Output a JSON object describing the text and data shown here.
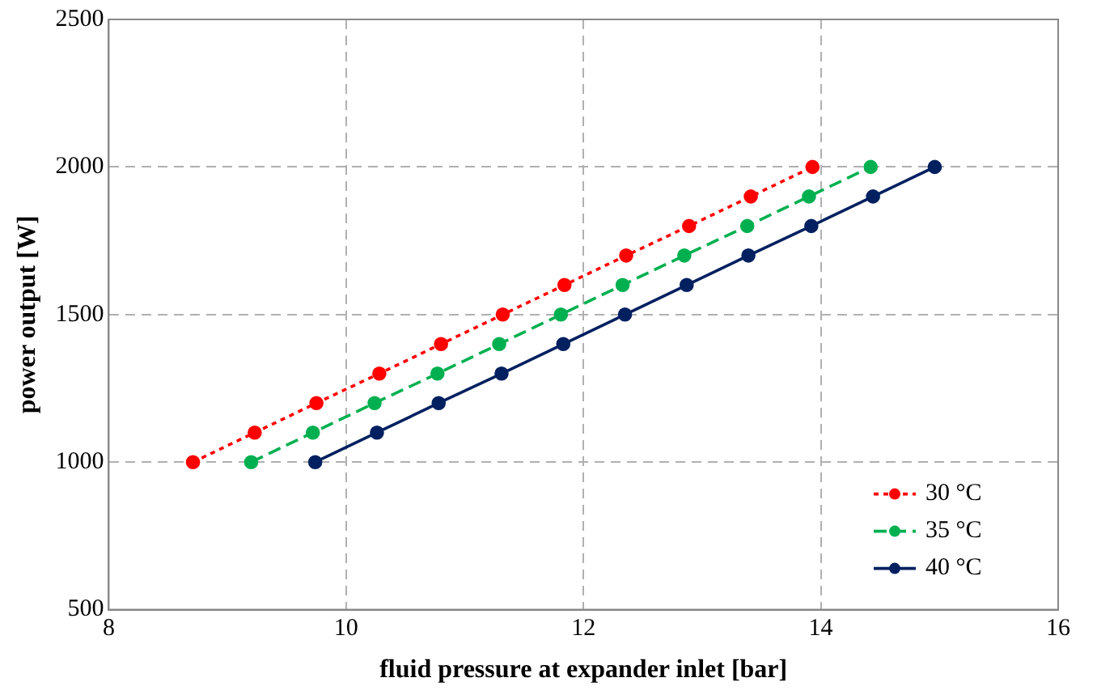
{
  "chart_data": {
    "type": "line",
    "xlabel": "fluid pressure at expander inlet [bar]",
    "ylabel": "power output [W]",
    "xlim": [
      8,
      16
    ],
    "xticks": [
      8,
      10,
      12,
      14,
      16
    ],
    "ylim": [
      500,
      2500
    ],
    "yticks": [
      500,
      1000,
      1500,
      2000,
      2500
    ],
    "grid": true,
    "legend": "bottom right",
    "marker": "circle",
    "series": [
      {
        "name": "30 °C",
        "color": "#ff0000",
        "line_style": "dotted",
        "x": [
          8.71,
          9.23,
          9.75,
          10.28,
          10.8,
          11.32,
          11.84,
          12.36,
          12.89,
          13.41,
          13.93
        ],
        "values": [
          1000,
          1100,
          1200,
          1300,
          1400,
          1500,
          1600,
          1700,
          1800,
          1900,
          2000
        ]
      },
      {
        "name": "35 °C",
        "color": "#00b050",
        "line_style": "dashed",
        "x": [
          9.2,
          9.72,
          10.24,
          10.77,
          11.29,
          11.81,
          12.33,
          12.85,
          13.38,
          13.9,
          14.42
        ],
        "values": [
          1000,
          1100,
          1200,
          1300,
          1400,
          1500,
          1600,
          1700,
          1800,
          1900,
          2000
        ]
      },
      {
        "name": "40 °C",
        "color": "#002060",
        "line_style": "solid",
        "x": [
          9.74,
          10.26,
          10.78,
          11.31,
          11.83,
          12.35,
          12.87,
          13.39,
          13.92,
          14.44,
          14.96
        ],
        "values": [
          1000,
          1100,
          1200,
          1300,
          1400,
          1500,
          1600,
          1700,
          1800,
          1900,
          2000
        ]
      }
    ]
  }
}
